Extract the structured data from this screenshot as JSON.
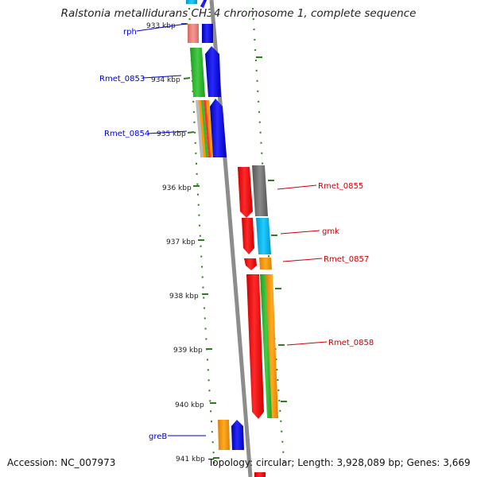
{
  "title": "Ralstonia metallidurans CH34 chromosome 1, complete sequence",
  "footer": {
    "accession": "Accession: NC_007973",
    "stats": "Topology: circular; Length: 3,928,089 bp; Genes: 3,669"
  },
  "ticks": [
    "933 kbp",
    "934 kbp",
    "935 kbp",
    "936 kbp",
    "937 kbp",
    "938 kbp",
    "939 kbp",
    "940 kbp",
    "941 kbp"
  ],
  "genes_left": [
    {
      "name": "rph",
      "color": "#0000cc"
    },
    {
      "name": "Rmet_0853",
      "color": "#0000cc"
    },
    {
      "name": "Rmet_0854",
      "color": "#0000cc"
    },
    {
      "name": "greB",
      "color": "#0000cc"
    }
  ],
  "genes_right": [
    {
      "name": "Rmet_0855",
      "color": "#cc0000"
    },
    {
      "name": "gmk",
      "color": "#cc0000"
    },
    {
      "name": "Rmet_0857",
      "color": "#cc0000"
    },
    {
      "name": "Rmet_0858",
      "color": "#cc0000"
    }
  ],
  "colors": {
    "backbone": "#8c8c8c",
    "tick": "#2e7d1e",
    "forward_strand": "#0000ff",
    "reverse_strand": "#ff0000",
    "feature_pink": "#f08a80",
    "feature_green": "#33bb33",
    "feature_orange": "#ff9900",
    "feature_cyan": "#00bbee",
    "feature_gray": "#777777"
  }
}
